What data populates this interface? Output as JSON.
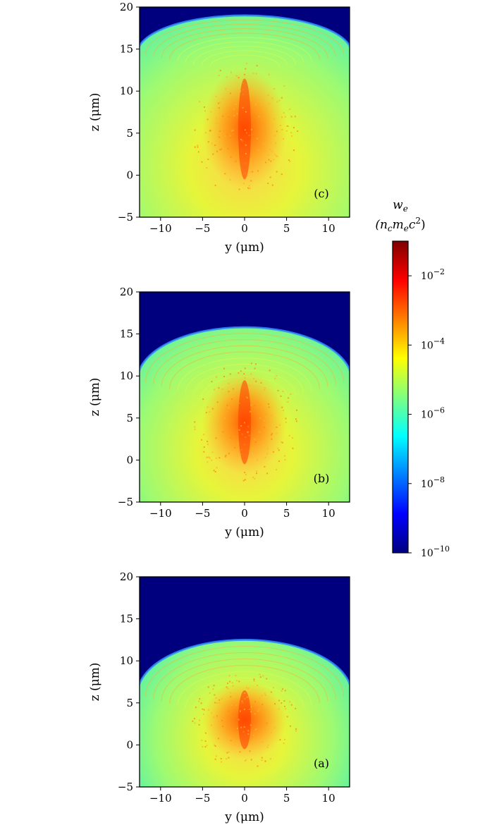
{
  "chart_data": [
    {
      "type": "heatmap",
      "panel_label": "(c)",
      "xlabel": "y (μm)",
      "ylabel": "z (μm)",
      "xlim": [
        -12.5,
        12.5
      ],
      "ylim": [
        -5,
        20
      ],
      "xticks": [
        -10,
        -5,
        0,
        5,
        10
      ],
      "yticks": [
        -5,
        0,
        5,
        10,
        15,
        20
      ],
      "wavefront_apex_z": 19.0,
      "wavefront_edge_z": 14.5,
      "core_top_z": 12,
      "core_bottom_z": -1
    },
    {
      "type": "heatmap",
      "panel_label": "(b)",
      "xlabel": "y (μm)",
      "ylabel": "z (μm)",
      "xlim": [
        -12.5,
        12.5
      ],
      "ylim": [
        -5,
        20
      ],
      "xticks": [
        -10,
        -5,
        0,
        5,
        10
      ],
      "yticks": [
        -5,
        0,
        5,
        10,
        15,
        20
      ],
      "wavefront_apex_z": 15.8,
      "wavefront_edge_z": 9.5,
      "core_top_z": 10,
      "core_bottom_z": -1
    },
    {
      "type": "heatmap",
      "panel_label": "(a)",
      "xlabel": "y (μm)",
      "ylabel": "z (μm)",
      "xlim": [
        -12.5,
        12.5
      ],
      "ylim": [
        -5,
        20
      ],
      "xticks": [
        -10,
        -5,
        0,
        5,
        10
      ],
      "yticks": [
        -5,
        0,
        5,
        10,
        15,
        20
      ],
      "wavefront_apex_z": 12.5,
      "wavefront_edge_z": 6.0,
      "core_top_z": 7,
      "core_bottom_z": -1
    }
  ],
  "colorbar": {
    "title_line1": "w",
    "title_line1_sub": "e",
    "title_line2": "(n",
    "title_line2_sub1": "c",
    "title_line2_mid": "m",
    "title_line2_sub2": "e",
    "title_line2_end": "c",
    "title_line2_sup": "2",
    "title_line2_close": ")",
    "scale": "log",
    "range": [
      1e-10,
      0.1
    ],
    "ticks": [
      {
        "value": 1e-10,
        "base": "10",
        "exp": "−10"
      },
      {
        "value": 1e-08,
        "base": "10",
        "exp": "−8"
      },
      {
        "value": 1e-06,
        "base": "10",
        "exp": "−6"
      },
      {
        "value": 0.0001,
        "base": "10",
        "exp": "−4"
      },
      {
        "value": 0.01,
        "base": "10",
        "exp": "−2"
      }
    ],
    "colormap": [
      "#00007f",
      "#0000ff",
      "#007fff",
      "#00ffff",
      "#7fff7f",
      "#ffff00",
      "#ff7f00",
      "#ff0000",
      "#7f0000"
    ]
  }
}
